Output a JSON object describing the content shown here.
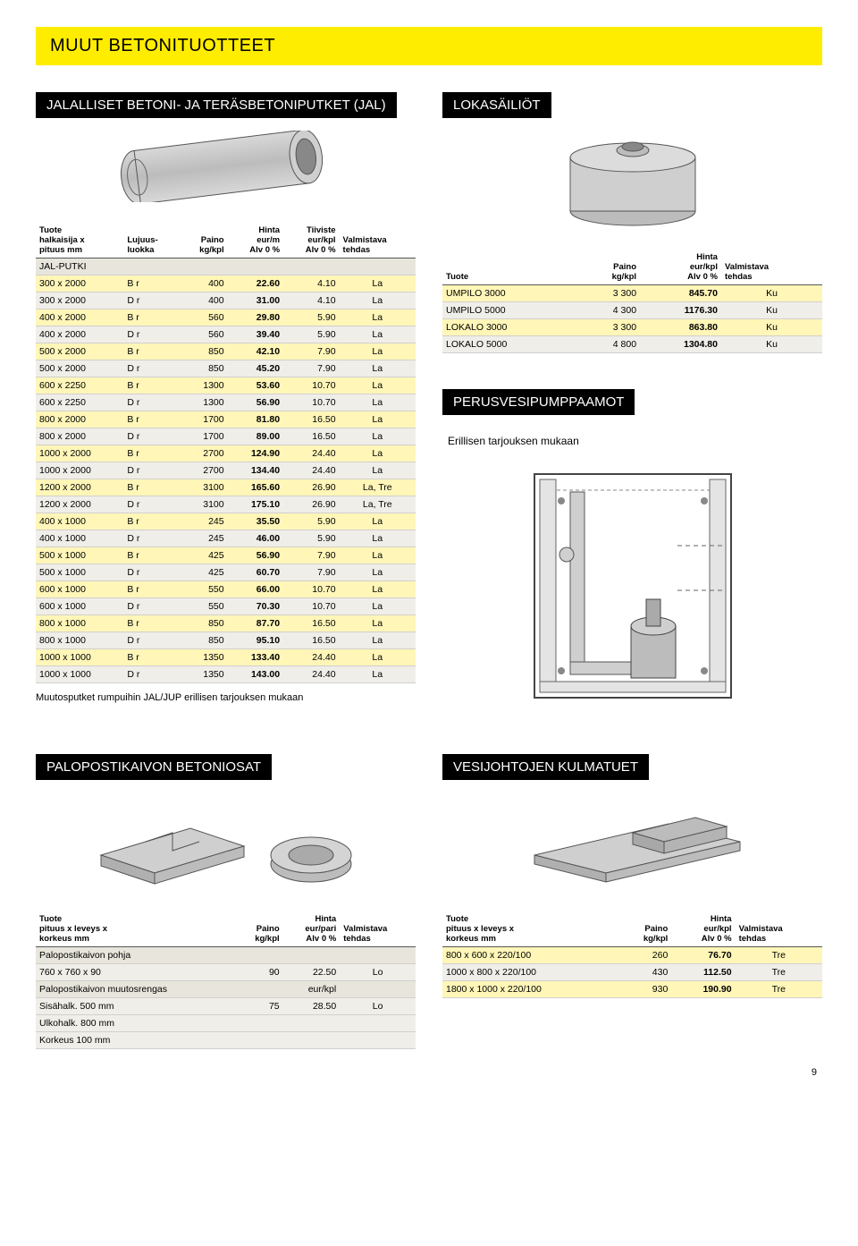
{
  "banner": "MUUT BETONITUOTTEET",
  "colors": {
    "banner_bg": "#ffed00",
    "header_bg": "#000000",
    "header_fg": "#ffffff",
    "row_yellow": "#fff6b8",
    "row_grey": "#f0eee8",
    "row_head": "#e8e5dc"
  },
  "sect_jal": {
    "title": "JALALLISET BETONI- JA TERÄSBETONIPUTKET (JAL)",
    "headers": {
      "c0": "Tuote\nhalkaisija x\npituus mm",
      "c1": "Lujuus-\nluokka",
      "c2": "Paino\nkg/kpl",
      "c3": "Hinta\neur/m\nAlv 0 %",
      "c4": "Tiiviste\neur/kpl\nAlv 0 %",
      "c5": "Valmistava\ntehdas"
    },
    "group_label": "JAL-PUTKI",
    "rows": [
      [
        "300 x 2000",
        "B r",
        "400",
        "22.60",
        "4.10",
        "La",
        "y"
      ],
      [
        "300 x 2000",
        "D r",
        "400",
        "31.00",
        "4.10",
        "La",
        "g"
      ],
      [
        "400 x 2000",
        "B r",
        "560",
        "29.80",
        "5.90",
        "La",
        "y"
      ],
      [
        "400 x 2000",
        "D r",
        "560",
        "39.40",
        "5.90",
        "La",
        "g"
      ],
      [
        "500 x 2000",
        "B r",
        "850",
        "42.10",
        "7.90",
        "La",
        "y"
      ],
      [
        "500 x 2000",
        "D r",
        "850",
        "45.20",
        "7.90",
        "La",
        "g"
      ],
      [
        "600 x 2250",
        "B r",
        "1300",
        "53.60",
        "10.70",
        "La",
        "y"
      ],
      [
        "600 x 2250",
        "D r",
        "1300",
        "56.90",
        "10.70",
        "La",
        "g"
      ],
      [
        "800 x 2000",
        "B r",
        "1700",
        "81.80",
        "16.50",
        "La",
        "y"
      ],
      [
        "800 x 2000",
        "D r",
        "1700",
        "89.00",
        "16.50",
        "La",
        "g"
      ],
      [
        "1000 x 2000",
        "B r",
        "2700",
        "124.90",
        "24.40",
        "La",
        "y"
      ],
      [
        "1000 x 2000",
        "D r",
        "2700",
        "134.40",
        "24.40",
        "La",
        "g"
      ],
      [
        "1200 x 2000",
        "B r",
        "3100",
        "165.60",
        "26.90",
        "La, Tre",
        "y"
      ],
      [
        "1200 x 2000",
        "D r",
        "3100",
        "175.10",
        "26.90",
        "La, Tre",
        "g"
      ],
      [
        "400 x 1000",
        "B r",
        "245",
        "35.50",
        "5.90",
        "La",
        "y"
      ],
      [
        "400 x 1000",
        "D r",
        "245",
        "46.00",
        "5.90",
        "La",
        "g"
      ],
      [
        "500 x 1000",
        "B r",
        "425",
        "56.90",
        "7.90",
        "La",
        "y"
      ],
      [
        "500 x 1000",
        "D r",
        "425",
        "60.70",
        "7.90",
        "La",
        "g"
      ],
      [
        "600 x 1000",
        "B r",
        "550",
        "66.00",
        "10.70",
        "La",
        "y"
      ],
      [
        "600 x 1000",
        "D r",
        "550",
        "70.30",
        "10.70",
        "La",
        "g"
      ],
      [
        "800 x 1000",
        "B r",
        "850",
        "87.70",
        "16.50",
        "La",
        "y"
      ],
      [
        "800 x 1000",
        "D r",
        "850",
        "95.10",
        "16.50",
        "La",
        "g"
      ],
      [
        "1000 x 1000",
        "B r",
        "1350",
        "133.40",
        "24.40",
        "La",
        "y"
      ],
      [
        "1000 x 1000",
        "D r",
        "1350",
        "143.00",
        "24.40",
        "La",
        "g"
      ]
    ],
    "footnote": "Muutosputket rumpuihin JAL/JUP erillisen tarjouksen mukaan"
  },
  "sect_loka": {
    "title": "LOKASÄILIÖT",
    "headers": {
      "c0": "Tuote",
      "c1": "Paino\nkg/kpl",
      "c2": "Hinta\neur/kpl\nAlv 0 %",
      "c3": "Valmistava\ntehdas"
    },
    "rows": [
      [
        "UMPILO 3000",
        "3 300",
        "845.70",
        "Ku",
        "y"
      ],
      [
        "UMPILO 5000",
        "4 300",
        "1176.30",
        "Ku",
        "g"
      ],
      [
        "LOKALO 3000",
        "3 300",
        "863.80",
        "Ku",
        "y"
      ],
      [
        "LOKALO 5000",
        "4 800",
        "1304.80",
        "Ku",
        "g"
      ]
    ]
  },
  "sect_pump": {
    "title": "PERUSVESIPUMPPAAMOT",
    "sub": "Erillisen tarjouksen mukaan"
  },
  "sect_palo": {
    "title": "PALOPOSTIKAIVON BETONIOSAT",
    "headers": {
      "c0": "Tuote\npituus x leveys x\nkorkeus mm",
      "c1": "Paino\nkg/kpl",
      "c2": "Hinta\neur/pari\nAlv 0 %",
      "c3": "Valmistava\ntehdas"
    },
    "group1": "Palopostikaivon pohja",
    "row1": [
      "760 x 760 x 90",
      "90",
      "22.50",
      "Lo"
    ],
    "group2": "Palopostikaivon muutosrengas",
    "group2_extra": "eur/kpl",
    "row2a": "Sisähalk.  500 mm",
    "row2a_p": "75",
    "row2a_h": "28.50",
    "row2a_t": "Lo",
    "row2b": "Ulkohalk.  800 mm",
    "row2c": "Korkeus  100 mm"
  },
  "sect_vesi": {
    "title": "VESIJOHTOJEN KULMATUET",
    "headers": {
      "c0": "Tuote\npituus x leveys x\nkorkeus mm",
      "c1": "Paino\nkg/kpl",
      "c2": "Hinta\neur/kpl\nAlv 0 %",
      "c3": "Valmistava\ntehdas"
    },
    "rows": [
      [
        "800 x  600 x 220/100",
        "260",
        "76.70",
        "Tre",
        "y"
      ],
      [
        "1000 x  800 x 220/100",
        "430",
        "112.50",
        "Tre",
        "g"
      ],
      [
        "1800 x 1000 x 220/100",
        "930",
        "190.90",
        "Tre",
        "y"
      ]
    ]
  },
  "page_number": "9"
}
